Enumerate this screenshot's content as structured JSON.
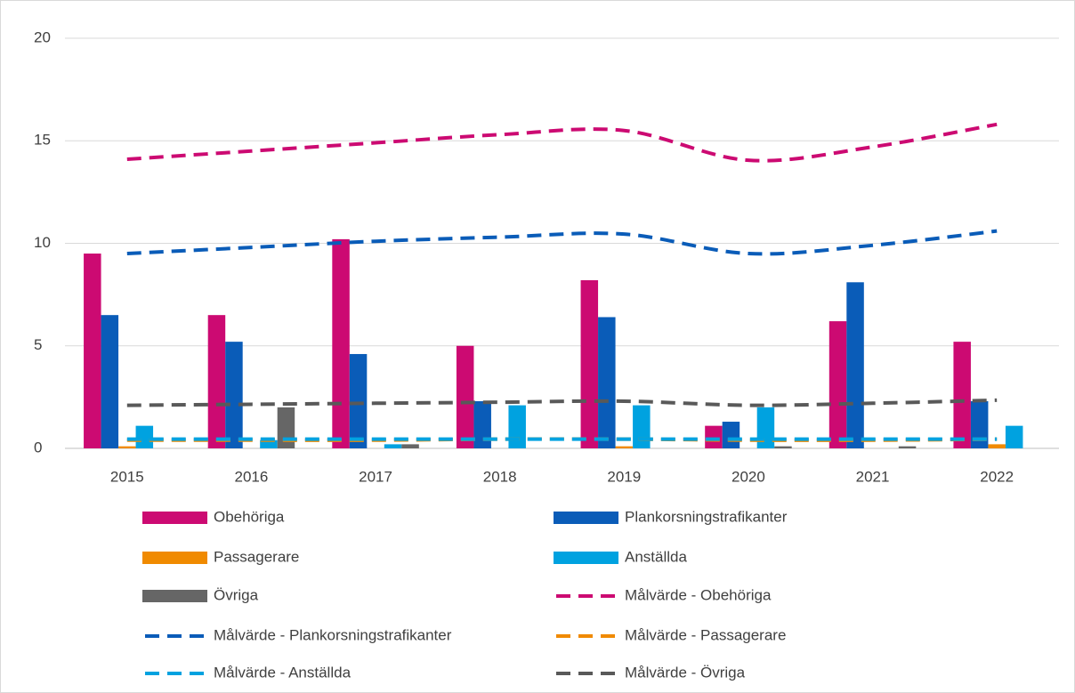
{
  "chart_data": {
    "type": "bar",
    "categories": [
      "2015",
      "2016",
      "2017",
      "2018",
      "2019",
      "2020",
      "2021",
      "2022"
    ],
    "ylim": [
      0,
      20
    ],
    "yticks": [
      0,
      5,
      10,
      15,
      20
    ],
    "grid": true,
    "series": [
      {
        "name": "Obehöriga",
        "type": "bar",
        "color": "#cc0a72",
        "values": [
          9.5,
          6.5,
          10.2,
          5.0,
          8.2,
          1.1,
          6.2,
          5.2
        ]
      },
      {
        "name": "Plankorsningstrafikanter",
        "type": "bar",
        "color": "#0a5cb8",
        "values": [
          6.5,
          5.2,
          4.6,
          2.3,
          6.4,
          1.3,
          8.1,
          2.3
        ]
      },
      {
        "name": "Passagerare",
        "type": "bar",
        "color": "#f08a00",
        "values": [
          0.1,
          0,
          0,
          0,
          0.1,
          0,
          0,
          0.2
        ]
      },
      {
        "name": "Anställda",
        "type": "bar",
        "color": "#00a2e0",
        "values": [
          1.1,
          0.4,
          0.2,
          2.1,
          2.1,
          2.0,
          0,
          1.1
        ]
      },
      {
        "name": "Övriga",
        "type": "bar",
        "color": "#666666",
        "values": [
          0,
          2.0,
          0.2,
          0,
          0,
          0.1,
          0.1,
          0
        ]
      },
      {
        "name": "Målvärde - Obehöriga",
        "type": "line",
        "dashed": true,
        "color": "#cc0a72",
        "values": [
          14.1,
          14.5,
          14.9,
          15.3,
          15.5,
          14.05,
          14.7,
          15.8
        ]
      },
      {
        "name": "Målvärde - Plankorsningstrafikanter",
        "type": "line",
        "dashed": true,
        "color": "#0a5cb8",
        "values": [
          9.5,
          9.8,
          10.1,
          10.3,
          10.45,
          9.5,
          9.9,
          10.6
        ]
      },
      {
        "name": "Målvärde - Passagerare",
        "type": "line",
        "dashed": true,
        "color": "#f08a00",
        "values": [
          0.4,
          0.4,
          0.4,
          0.45,
          0.45,
          0.4,
          0.4,
          0.45
        ]
      },
      {
        "name": "Målvärde - Anställda",
        "type": "line",
        "dashed": true,
        "color": "#00a2e0",
        "values": [
          0.45,
          0.45,
          0.45,
          0.45,
          0.45,
          0.45,
          0.45,
          0.45
        ]
      },
      {
        "name": "Målvärde - Övriga",
        "type": "line",
        "dashed": true,
        "color": "#595959",
        "values": [
          2.1,
          2.15,
          2.2,
          2.25,
          2.3,
          2.1,
          2.2,
          2.35
        ]
      }
    ]
  }
}
